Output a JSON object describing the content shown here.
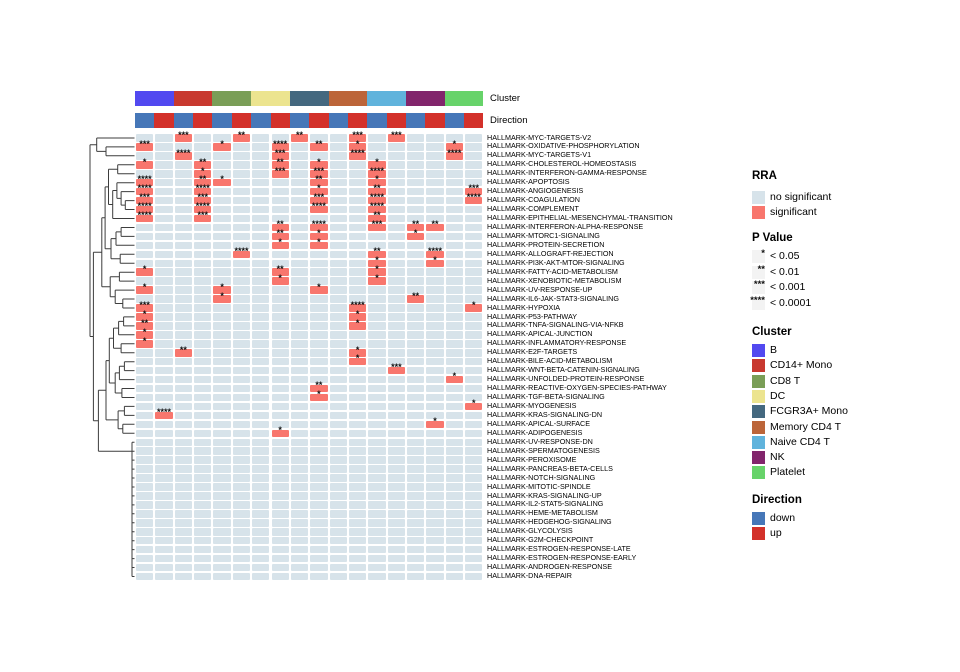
{
  "annotation": {
    "cluster_label": "Cluster",
    "direction_label": "Direction"
  },
  "legend": {
    "rra": {
      "title": "RRA",
      "items": [
        {
          "label": "no significant",
          "color": "#d7e3ea"
        },
        {
          "label": "significant",
          "color": "#f8766d"
        }
      ]
    },
    "pvalue": {
      "title": "P Value",
      "swatch_color": "#f3f3f3",
      "items": [
        {
          "stars": "*",
          "label": "< 0.05"
        },
        {
          "stars": "**",
          "label": "< 0.01"
        },
        {
          "stars": "***",
          "label": "< 0.001"
        },
        {
          "stars": "****",
          "label": "< 0.0001"
        }
      ]
    },
    "cluster": {
      "title": "Cluster",
      "items": [
        {
          "label": "B",
          "color": "#5249f0"
        },
        {
          "label": "CD14+ Mono",
          "color": "#c8392f"
        },
        {
          "label": "CD8 T",
          "color": "#7a9e57"
        },
        {
          "label": "DC",
          "color": "#ece48f"
        },
        {
          "label": "FCGR3A+ Mono",
          "color": "#44687f"
        },
        {
          "label": "Memory CD4 T",
          "color": "#bc6539"
        },
        {
          "label": "Naive CD4 T",
          "color": "#60b3dc"
        },
        {
          "label": "NK",
          "color": "#82256c"
        },
        {
          "label": "Platelet",
          "color": "#67d36a"
        }
      ]
    },
    "direction": {
      "title": "Direction",
      "items": [
        {
          "label": "down",
          "color": "#4677b8"
        },
        {
          "label": "up",
          "color": "#d3312a"
        }
      ]
    }
  },
  "chart_data": {
    "type": "heatmap",
    "description": "RRA significance heatmap of 50 MSigDB hallmark gene sets across 9 PBMC clusters x 2 directions (down/up). Cell color = significant / no significant; asterisks = p-value bin.",
    "clusters": [
      "B",
      "CD14+ Mono",
      "CD8 T",
      "DC",
      "FCGR3A+ Mono",
      "Memory CD4 T",
      "Naive CD4 T",
      "NK",
      "Platelet"
    ],
    "directions": [
      "down",
      "up"
    ],
    "colors": {
      "significant": "#f8766d",
      "no_significant": "#d7e3ea",
      "cluster": [
        "#5249f0",
        "#c8392f",
        "#7a9e57",
        "#ece48f",
        "#44687f",
        "#bc6539",
        "#60b3dc",
        "#82256c",
        "#67d36a"
      ],
      "direction": [
        "#4677b8",
        "#d3312a"
      ]
    },
    "rows": [
      "HALLMARK-MYC-TARGETS-V2",
      "HALLMARK-OXIDATIVE-PHOSPHORYLATION",
      "HALLMARK-MYC-TARGETS-V1",
      "HALLMARK-CHOLESTEROL-HOMEOSTASIS",
      "HALLMARK-INTERFERON-GAMMA-RESPONSE",
      "HALLMARK-APOPTOSIS",
      "HALLMARK-ANGIOGENESIS",
      "HALLMARK-COAGULATION",
      "HALLMARK-COMPLEMENT",
      "HALLMARK-EPITHELIAL-MESENCHYMAL-TRANSITION",
      "HALLMARK-INTERFERON-ALPHA-RESPONSE",
      "HALLMARK-MTORC1-SIGNALING",
      "HALLMARK-PROTEIN-SECRETION",
      "HALLMARK-ALLOGRAFT-REJECTION",
      "HALLMARK-PI3K-AKT-MTOR-SIGNALING",
      "HALLMARK-FATTY-ACID-METABOLISM",
      "HALLMARK-XENOBIOTIC-METABOLISM",
      "HALLMARK-UV-RESPONSE-UP",
      "HALLMARK-IL6-JAK-STAT3-SIGNALING",
      "HALLMARK-HYPOXIA",
      "HALLMARK-P53-PATHWAY",
      "HALLMARK-TNFA-SIGNALING-VIA-NFKB",
      "HALLMARK-APICAL-JUNCTION",
      "HALLMARK-INFLAMMATORY-RESPONSE",
      "HALLMARK-E2F-TARGETS",
      "HALLMARK-BILE-ACID-METABOLISM",
      "HALLMARK-WNT-BETA-CATENIN-SIGNALING",
      "HALLMARK-UNFOLDED-PROTEIN-RESPONSE",
      "HALLMARK-REACTIVE-OXYGEN-SPECIES-PATHWAY",
      "HALLMARK-TGF-BETA-SIGNALING",
      "HALLMARK-MYOGENESIS",
      "HALLMARK-KRAS-SIGNALING-DN",
      "HALLMARK-APICAL-SURFACE",
      "HALLMARK-ADIPOGENESIS",
      "HALLMARK-UV-RESPONSE-DN",
      "HALLMARK-SPERMATOGENESIS",
      "HALLMARK-PEROXISOME",
      "HALLMARK-PANCREAS-BETA-CELLS",
      "HALLMARK-NOTCH-SIGNALING",
      "HALLMARK-MITOTIC-SPINDLE",
      "HALLMARK-KRAS-SIGNALING-UP",
      "HALLMARK-IL2-STAT5-SIGNALING",
      "HALLMARK-HEME-METABOLISM",
      "HALLMARK-HEDGEHOG-SIGNALING",
      "HALLMARK-GLYCOLYSIS",
      "HALLMARK-G2M-CHECKPOINT",
      "HALLMARK-ESTROGEN-RESPONSE-LATE",
      "HALLMARK-ESTROGEN-RESPONSE-EARLY",
      "HALLMARK-ANDROGEN-RESPONSE",
      "HALLMARK-DNA-REPAIR"
    ],
    "significant_cells": [
      [
        0,
        2,
        "***"
      ],
      [
        0,
        5,
        "**"
      ],
      [
        0,
        8,
        "**"
      ],
      [
        0,
        11,
        "***"
      ],
      [
        0,
        13,
        "***"
      ],
      [
        1,
        0,
        "***"
      ],
      [
        1,
        4,
        "*"
      ],
      [
        1,
        7,
        "****"
      ],
      [
        1,
        9,
        "**"
      ],
      [
        1,
        11,
        "*"
      ],
      [
        1,
        16,
        "*"
      ],
      [
        2,
        2,
        "****"
      ],
      [
        2,
        7,
        "***"
      ],
      [
        2,
        11,
        "****"
      ],
      [
        2,
        16,
        "****"
      ],
      [
        3,
        0,
        "*"
      ],
      [
        3,
        3,
        "**"
      ],
      [
        3,
        7,
        "**"
      ],
      [
        3,
        9,
        "*"
      ],
      [
        3,
        12,
        "*"
      ],
      [
        4,
        3,
        "*"
      ],
      [
        4,
        7,
        "***"
      ],
      [
        4,
        9,
        "***"
      ],
      [
        4,
        12,
        "****"
      ],
      [
        5,
        0,
        "****"
      ],
      [
        5,
        3,
        "**"
      ],
      [
        5,
        4,
        "*"
      ],
      [
        5,
        9,
        "**"
      ],
      [
        5,
        12,
        "*"
      ],
      [
        6,
        0,
        "****"
      ],
      [
        6,
        3,
        "****"
      ],
      [
        6,
        9,
        "*"
      ],
      [
        6,
        12,
        "**"
      ],
      [
        6,
        17,
        "***"
      ],
      [
        7,
        0,
        "***"
      ],
      [
        7,
        3,
        "***"
      ],
      [
        7,
        9,
        "***"
      ],
      [
        7,
        12,
        "****"
      ],
      [
        7,
        17,
        "****"
      ],
      [
        8,
        0,
        "****"
      ],
      [
        8,
        3,
        "****"
      ],
      [
        8,
        9,
        "****"
      ],
      [
        8,
        12,
        "****"
      ],
      [
        9,
        0,
        "****"
      ],
      [
        9,
        3,
        "***"
      ],
      [
        9,
        12,
        "**"
      ],
      [
        10,
        7,
        "**"
      ],
      [
        10,
        9,
        "****"
      ],
      [
        10,
        12,
        "***"
      ],
      [
        10,
        14,
        "**"
      ],
      [
        10,
        15,
        "**"
      ],
      [
        11,
        7,
        "**"
      ],
      [
        11,
        9,
        "*"
      ],
      [
        11,
        14,
        "*"
      ],
      [
        12,
        7,
        "*"
      ],
      [
        12,
        9,
        "*"
      ],
      [
        13,
        5,
        "****"
      ],
      [
        13,
        12,
        "**"
      ],
      [
        13,
        15,
        "****"
      ],
      [
        14,
        12,
        "*"
      ],
      [
        14,
        15,
        "*"
      ],
      [
        15,
        0,
        "*"
      ],
      [
        15,
        7,
        "**"
      ],
      [
        15,
        12,
        "*"
      ],
      [
        16,
        7,
        "*"
      ],
      [
        16,
        12,
        "*"
      ],
      [
        17,
        0,
        "*"
      ],
      [
        17,
        4,
        "*"
      ],
      [
        17,
        9,
        "*"
      ],
      [
        18,
        4,
        "*"
      ],
      [
        18,
        14,
        "**"
      ],
      [
        19,
        0,
        "***"
      ],
      [
        19,
        11,
        "****"
      ],
      [
        19,
        17,
        "*"
      ],
      [
        20,
        0,
        "*"
      ],
      [
        20,
        11,
        "*"
      ],
      [
        21,
        0,
        "**"
      ],
      [
        21,
        11,
        "*"
      ],
      [
        22,
        0,
        "*"
      ],
      [
        23,
        0,
        "*"
      ],
      [
        24,
        2,
        "**"
      ],
      [
        24,
        11,
        "*"
      ],
      [
        25,
        11,
        "*"
      ],
      [
        26,
        13,
        "***"
      ],
      [
        27,
        16,
        "*"
      ],
      [
        28,
        9,
        "**"
      ],
      [
        29,
        9,
        "*"
      ],
      [
        30,
        17,
        "*"
      ],
      [
        31,
        1,
        "****"
      ],
      [
        32,
        15,
        "*"
      ],
      [
        33,
        7,
        "*"
      ]
    ]
  }
}
